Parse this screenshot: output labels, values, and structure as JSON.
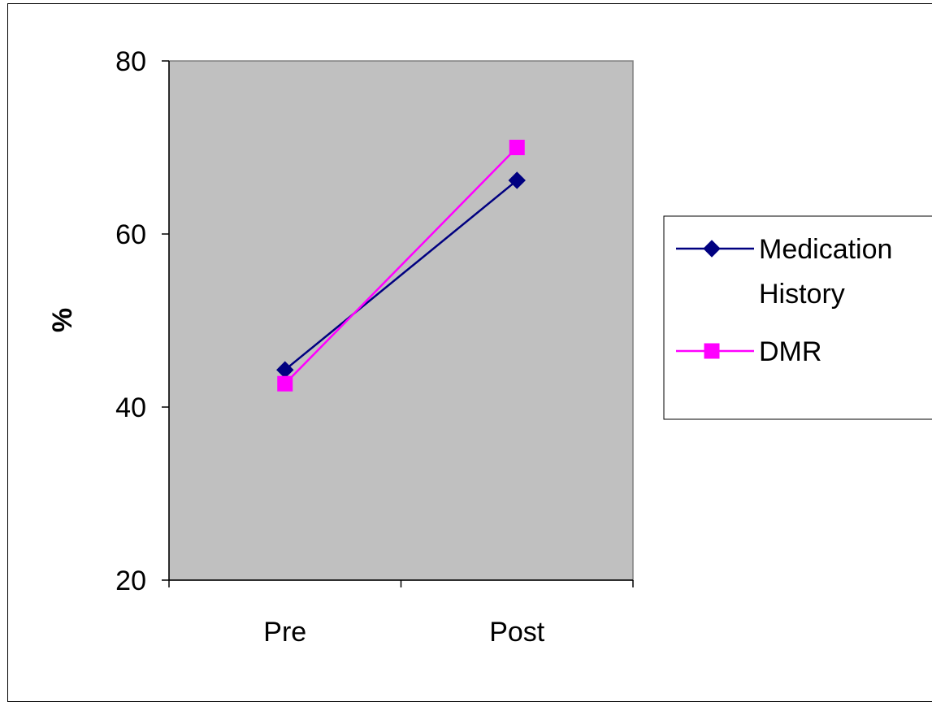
{
  "chart_data": {
    "type": "line",
    "categories": [
      "Pre",
      "Post"
    ],
    "series": [
      {
        "name": "Medication History",
        "name_lines": [
          "Medication",
          "History"
        ],
        "values": [
          44.3,
          66.2
        ],
        "color": "#000080",
        "marker": "diamond"
      },
      {
        "name": "DMR",
        "name_lines": [
          "DMR"
        ],
        "values": [
          42.7,
          70.0
        ],
        "color": "#FF00FF",
        "marker": "square"
      }
    ],
    "ylabel": "%",
    "xlabel": "",
    "ylim": [
      20,
      80
    ],
    "yticks": [
      20,
      40,
      60,
      80
    ],
    "plot_background": "#C0C0C0",
    "grid": false,
    "legend_position": "right"
  }
}
